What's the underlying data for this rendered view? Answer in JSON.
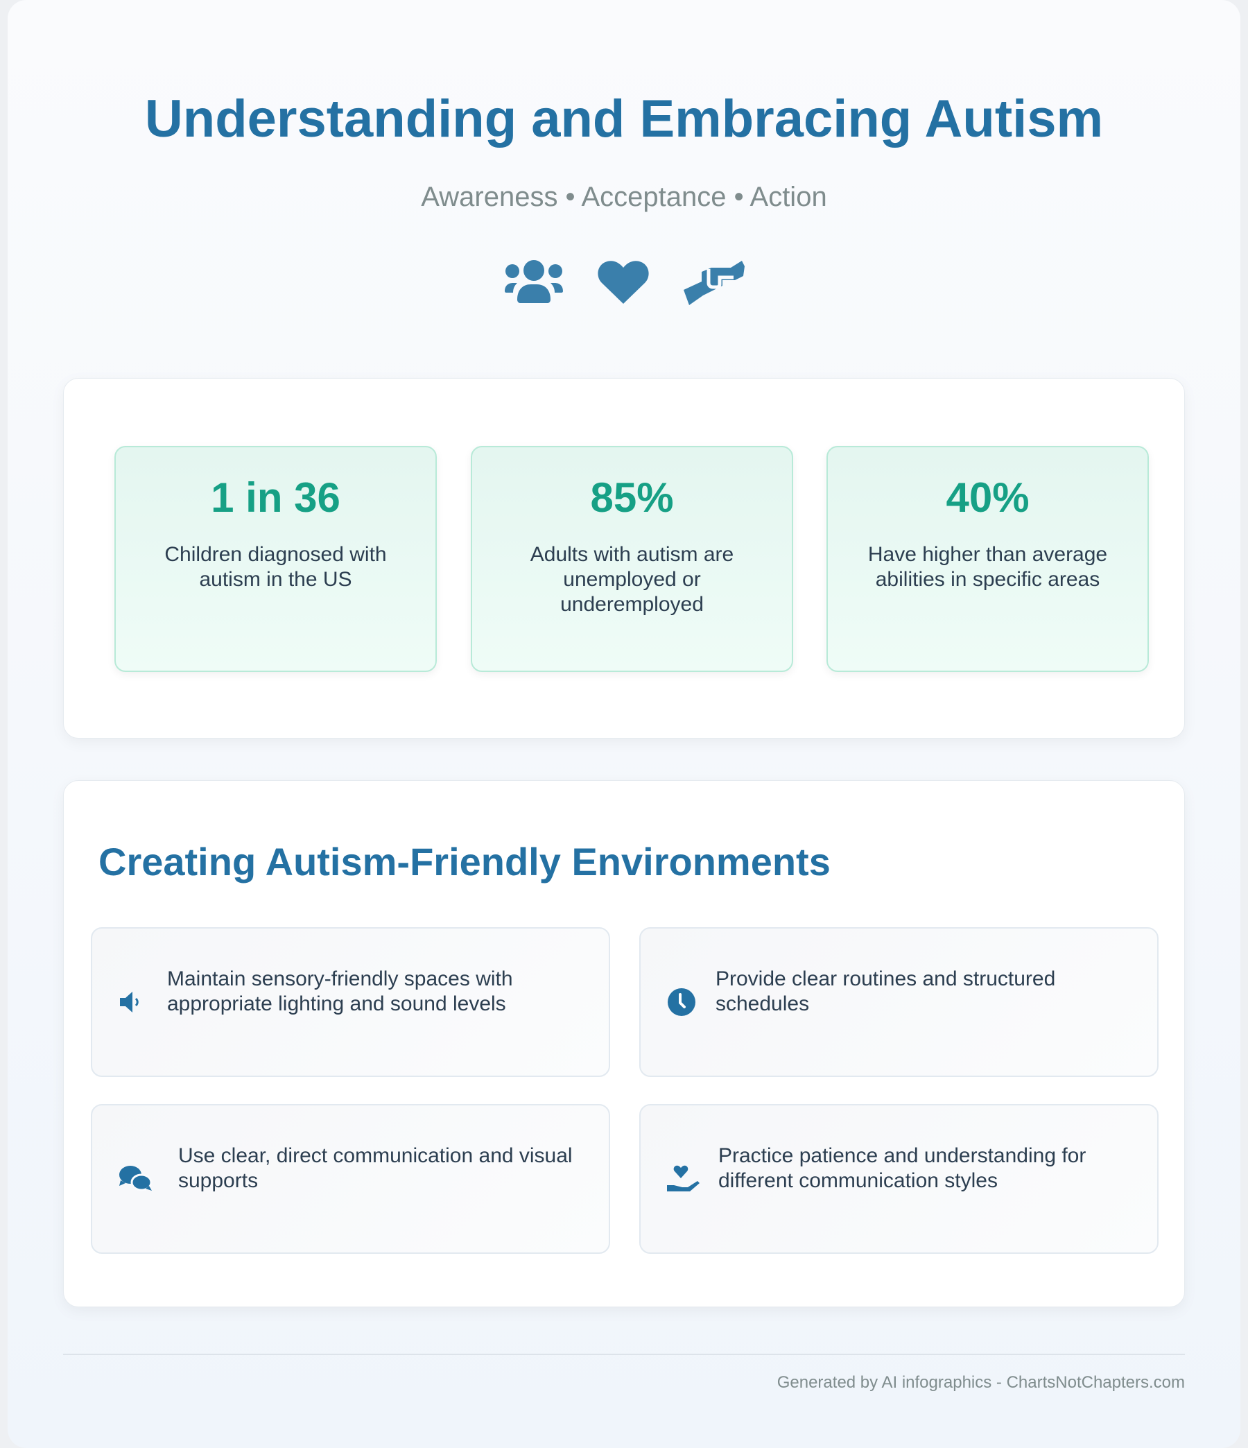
{
  "header": {
    "title": "Understanding and Embracing Autism",
    "subtitle": "Awareness • Acceptance • Action",
    "icons": [
      "users-icon",
      "heart-icon",
      "handshake-icon"
    ]
  },
  "stats": [
    {
      "value": "1 in 36",
      "label": "Children diagnosed with autism in the US"
    },
    {
      "value": "85%",
      "label": "Adults with autism are unemployed or underemployed"
    },
    {
      "value": "40%",
      "label": "Have higher than average abilities in specific areas"
    }
  ],
  "environments": {
    "heading": "Creating Autism-Friendly Environments",
    "tips": [
      {
        "icon": "volume-icon",
        "text": "Maintain sensory-friendly spaces with appropriate lighting and sound levels"
      },
      {
        "icon": "clock-icon",
        "text": "Provide clear routines and structured schedules"
      },
      {
        "icon": "comments-icon",
        "text": "Use clear, direct communication and visual supports"
      },
      {
        "icon": "hand-holding-heart-icon",
        "text": "Practice patience and understanding for different communication styles"
      }
    ]
  },
  "footer": {
    "text": "Generated by AI infographics - ChartsNotChapters.com"
  },
  "colors": {
    "primary": "#2471a3",
    "icon": "#3a7fab",
    "accent": "#16a085",
    "text": "#2c3e50",
    "muted": "#7f8c8d"
  }
}
